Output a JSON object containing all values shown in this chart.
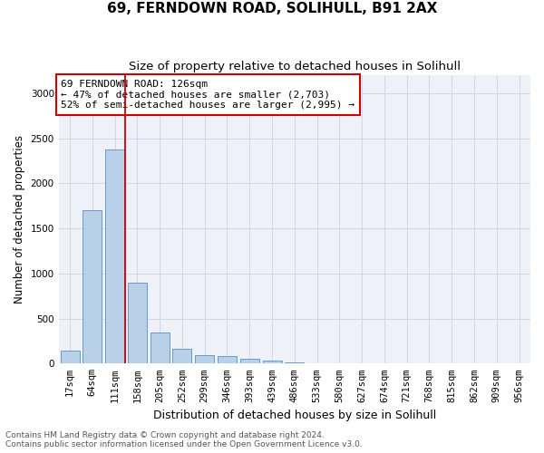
{
  "title1": "69, FERNDOWN ROAD, SOLIHULL, B91 2AX",
  "title2": "Size of property relative to detached houses in Solihull",
  "xlabel": "Distribution of detached houses by size in Solihull",
  "ylabel": "Number of detached properties",
  "categories": [
    "17sqm",
    "64sqm",
    "111sqm",
    "158sqm",
    "205sqm",
    "252sqm",
    "299sqm",
    "346sqm",
    "393sqm",
    "439sqm",
    "486sqm",
    "533sqm",
    "580sqm",
    "627sqm",
    "674sqm",
    "721sqm",
    "768sqm",
    "815sqm",
    "862sqm",
    "909sqm",
    "956sqm"
  ],
  "values": [
    140,
    1700,
    2380,
    900,
    345,
    160,
    90,
    85,
    50,
    30,
    15,
    5,
    2,
    0,
    0,
    0,
    0,
    0,
    0,
    0,
    0
  ],
  "bar_color": "#b8d0e8",
  "bar_edge_color": "#6699cc",
  "vline_x_index": 2.45,
  "vline_color": "#cc0000",
  "annotation_text": "69 FERNDOWN ROAD: 126sqm\n← 47% of detached houses are smaller (2,703)\n52% of semi-detached houses are larger (2,995) →",
  "annotation_box_color": "#ffffff",
  "annotation_box_edge_color": "#cc0000",
  "ylim": [
    0,
    3200
  ],
  "yticks": [
    0,
    500,
    1000,
    1500,
    2000,
    2500,
    3000
  ],
  "grid_color": "#d0d8e8",
  "bg_color": "#eef2f8",
  "footer1": "Contains HM Land Registry data © Crown copyright and database right 2024.",
  "footer2": "Contains public sector information licensed under the Open Government Licence v3.0.",
  "title1_fontsize": 11,
  "title2_fontsize": 9.5,
  "xlabel_fontsize": 9,
  "ylabel_fontsize": 8.5,
  "tick_fontsize": 7.5,
  "annotation_fontsize": 8,
  "footer_fontsize": 6.5
}
